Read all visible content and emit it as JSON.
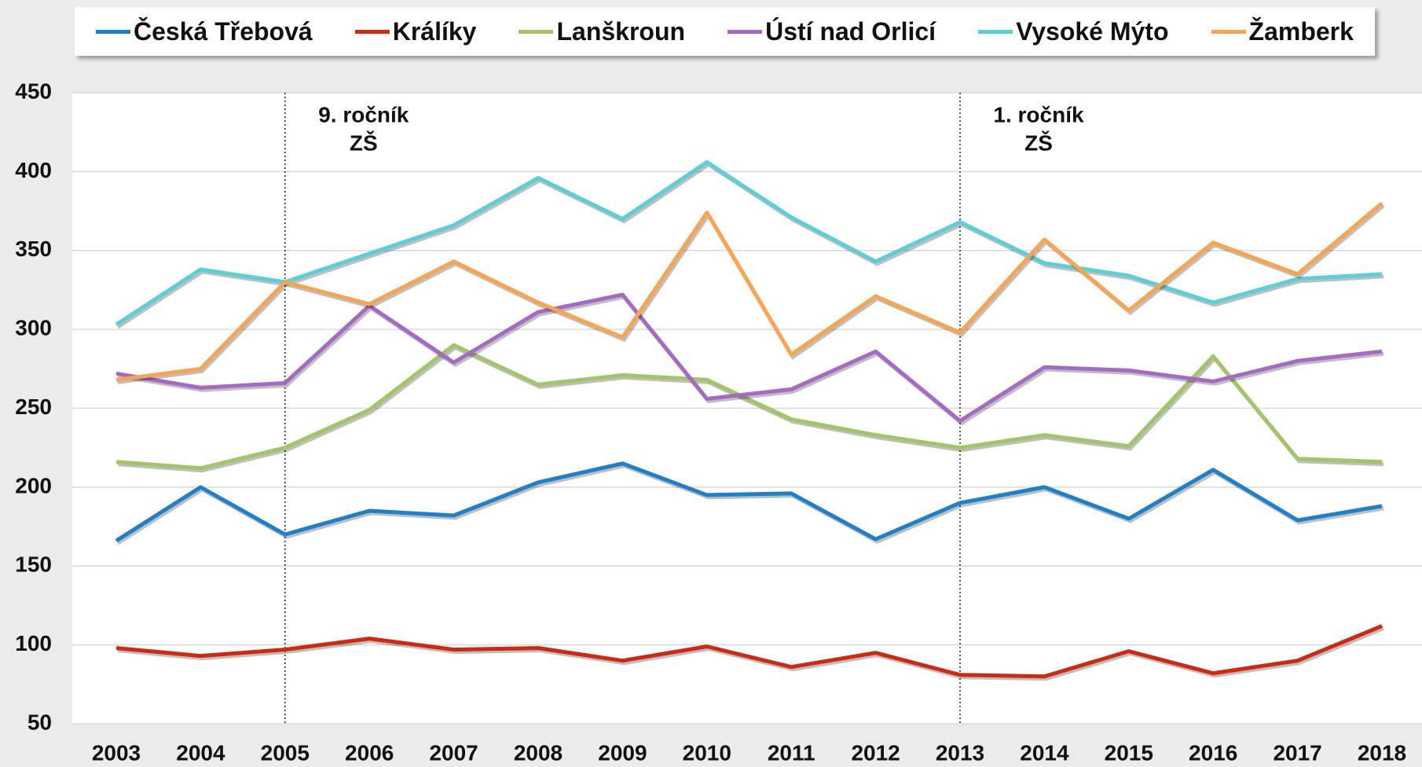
{
  "chart_data": {
    "type": "line",
    "categories": [
      "2003",
      "2004",
      "2005",
      "2006",
      "2007",
      "2008",
      "2009",
      "2010",
      "2011",
      "2012",
      "2013",
      "2014",
      "2015",
      "2016",
      "2017",
      "2018"
    ],
    "series": [
      {
        "name": "Česká Třebová",
        "color": "#1f7fc9",
        "values": [
          166,
          200,
          170,
          185,
          182,
          203,
          215,
          195,
          196,
          167,
          190,
          200,
          180,
          211,
          179,
          188
        ]
      },
      {
        "name": "Králíky",
        "color": "#cc2a12",
        "values": [
          98,
          93,
          97,
          104,
          97,
          98,
          90,
          99,
          86,
          95,
          81,
          80,
          96,
          82,
          90,
          112
        ]
      },
      {
        "name": "Lanškroun",
        "color": "#a4c46a",
        "values": [
          216,
          212,
          225,
          249,
          290,
          265,
          271,
          268,
          243,
          233,
          225,
          233,
          226,
          283,
          218,
          216
        ]
      },
      {
        "name": "Ústí nad Orlicí",
        "color": "#a56ac4",
        "values": [
          272,
          263,
          266,
          315,
          279,
          311,
          322,
          256,
          262,
          286,
          242,
          276,
          274,
          267,
          280,
          286
        ]
      },
      {
        "name": "Vysoké Mýto",
        "color": "#5ccfd6",
        "values": [
          303,
          338,
          330,
          348,
          366,
          396,
          370,
          406,
          371,
          343,
          368,
          342,
          334,
          317,
          332,
          335
        ]
      },
      {
        "name": "Žamberk",
        "color": "#f7a552",
        "values": [
          268,
          275,
          330,
          316,
          343,
          317,
          295,
          374,
          284,
          321,
          298,
          357,
          312,
          355,
          335,
          380
        ]
      }
    ],
    "ylim": [
      50,
      450
    ],
    "yticks": [
      50,
      100,
      150,
      200,
      250,
      300,
      350,
      400,
      450
    ],
    "grid": true,
    "annotations": [
      {
        "x": "2005",
        "lines": [
          "9. ročník",
          "ZŠ"
        ]
      },
      {
        "x": "2013",
        "lines": [
          "1. ročník",
          "ZŠ"
        ]
      }
    ]
  }
}
